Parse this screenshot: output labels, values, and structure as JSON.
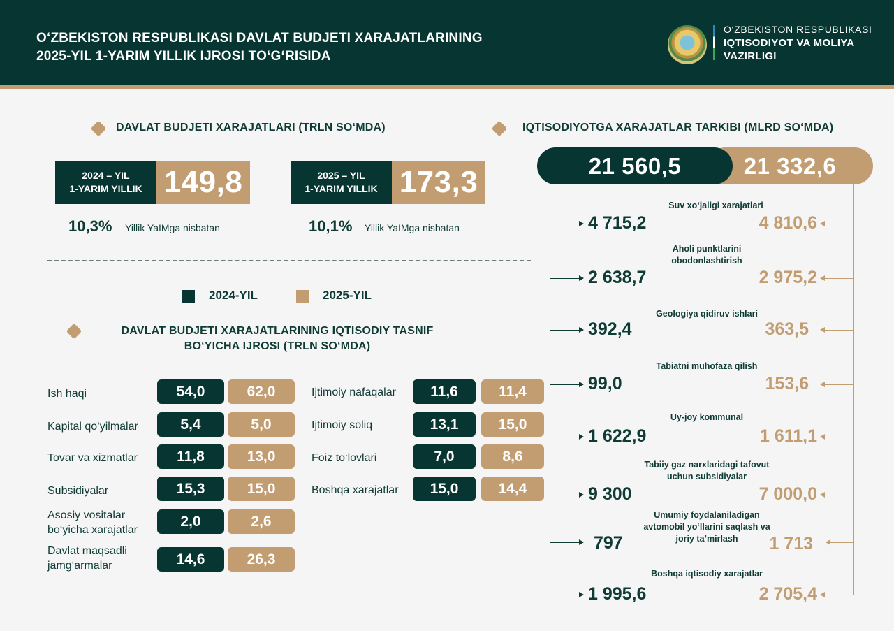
{
  "header": {
    "title_lines": [
      "O‘ZBEKISTON RESPUBLIKASI DAVLAT BUDJETI XARAJATLARINING",
      "2025-YIL 1-YARIM YILLIK IJROSI TO‘G‘RISIDA"
    ],
    "ministry_lines": [
      "O‘ZBEKISTON RESPUBLIKASI",
      "IQTISODIYOT VA MOLIYA",
      "VAZIRLIGI"
    ],
    "emblem_icon": "state-emblem"
  },
  "budget_section": {
    "title": "DAVLAT BUDJETI XARAJATLARI (TRLN SO‘MDA)",
    "stats": [
      {
        "label_lines": [
          "2024 – YIL",
          "1-YARIM YILLIK"
        ],
        "value": "149,8",
        "pct": "10,3%",
        "note": "Yillik YaIMga nisbatan"
      },
      {
        "label_lines": [
          "2025 – YIL",
          "1-YARIM YILLIK"
        ],
        "value": "173,3",
        "pct": "10,1%",
        "note": "Yillik YaIMga nisbatan"
      }
    ]
  },
  "legend": {
    "items": [
      {
        "label": "2024-YIL",
        "color": "#073531"
      },
      {
        "label": "2025-YIL",
        "color": "#c29d72"
      }
    ]
  },
  "econ_section": {
    "title_lines": [
      "DAVLAT BUDJETI XARAJATLARINING IQTISODIY TASNIF",
      "BO‘YICHA IJROSI (TRLN SO‘MDA)"
    ],
    "left_rows": [
      {
        "label_lines": [
          "Ish haqi"
        ],
        "v2024": "54,0",
        "v2025": "62,0"
      },
      {
        "label_lines": [
          "Kapital qo‘yilmalar"
        ],
        "v2024": "5,4",
        "v2025": "5,0"
      },
      {
        "label_lines": [
          "Tovar va xizmatlar"
        ],
        "v2024": "11,8",
        "v2025": "13,0"
      },
      {
        "label_lines": [
          "Subsidiyalar"
        ],
        "v2024": "15,3",
        "v2025": "15,0"
      },
      {
        "label_lines": [
          "Asosiy vositalar",
          "bo‘yicha xarajatlar"
        ],
        "v2024": "2,0",
        "v2025": "2,6"
      },
      {
        "label_lines": [
          "Davlat maqsadli",
          "jamg‘armalar"
        ],
        "v2024": "14,6",
        "v2025": "26,3"
      }
    ],
    "right_rows": [
      {
        "label": "Ijtimoiy nafaqalar",
        "v2024": "11,6",
        "v2025": "11,4"
      },
      {
        "label": "Ijtimoiy soliq",
        "v2024": "13,1",
        "v2025": "15,0"
      },
      {
        "label": "Foiz to‘lovlari",
        "v2024": "7,0",
        "v2025": "8,6"
      },
      {
        "label": "Boshqa xarajatlar",
        "v2024": "15,0",
        "v2025": "14,4"
      }
    ]
  },
  "structure_section": {
    "title": "IQTISODIYOTGA XARAJATLAR TARKIBI (MLRD SO‘MDA)",
    "total_2024": "21 560,5",
    "total_2025": "21 332,6",
    "items": [
      {
        "cat_lines": [
          "Suv xo‘jaligi xarajatlari"
        ],
        "v2024": "4 715,2",
        "v2025": "4 810,6"
      },
      {
        "cat_lines": [
          "Aholi punktlarini",
          "obodonlashtirish"
        ],
        "v2024": "2 638,7",
        "v2025": "2 975,2"
      },
      {
        "cat_lines": [
          "Geologiya qidiruv ishlari"
        ],
        "v2024": "392,4",
        "v2025": "363,5"
      },
      {
        "cat_lines": [
          "Tabiatni muhofaza qilish"
        ],
        "v2024": "99,0",
        "v2025": "153,6"
      },
      {
        "cat_lines": [
          "Uy-joy kommunal"
        ],
        "v2024": "1 622,9",
        "v2025": "1 611,1"
      },
      {
        "cat_lines": [
          "Tabiiy gaz narxlaridagi tafovut",
          "uchun subsidiyalar"
        ],
        "v2024": "9 300",
        "v2025": "7 000,0"
      },
      {
        "cat_lines": [
          "Umumiy foydalaniladigan",
          "avtomobil yo‘llarini saqlash va",
          "joriy ta’mirlash"
        ],
        "v2024": "797",
        "v2025": "1 713"
      },
      {
        "cat_lines": [
          "Boshqa iqtisodiy xarajatlar"
        ],
        "v2024": "1 995,6",
        "v2025": "2 705,4"
      }
    ]
  }
}
